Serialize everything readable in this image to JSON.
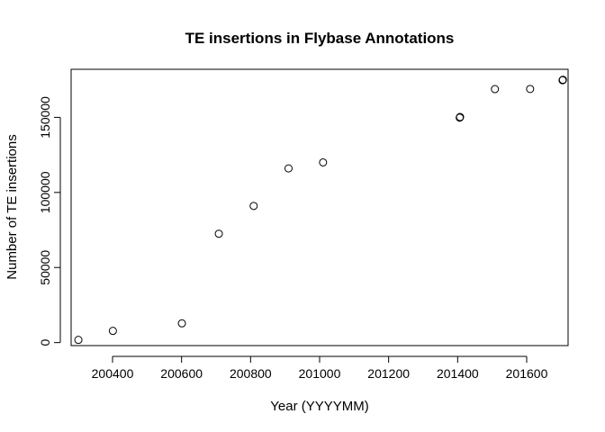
{
  "chart_data": {
    "type": "scatter",
    "title": "TE insertions in Flybase Annotations",
    "xlabel": "Year (YYYYMM)",
    "ylabel": "Number of TE insertions",
    "xlim": [
      200280,
      201720
    ],
    "ylim": [
      -2000,
      182000
    ],
    "x_ticks": [
      200400,
      200600,
      200800,
      201000,
      201200,
      201400,
      201600
    ],
    "y_ticks": [
      0,
      50000,
      100000,
      150000
    ],
    "x_tick_labels": [
      "200400",
      "200600",
      "200800",
      "201000",
      "201200",
      "201400",
      "201600"
    ],
    "y_tick_labels": [
      "0",
      "50000",
      "100000",
      "150000"
    ],
    "grid": false,
    "marker": "open-circle",
    "x": [
      200301,
      200401,
      200601,
      200708,
      200809,
      200910,
      201010,
      201406,
      201407,
      201508,
      201610,
      201704,
      201705
    ],
    "y": [
      1800,
      7800,
      12800,
      72500,
      91000,
      116000,
      120000,
      149800,
      150200,
      168800,
      168900,
      174700,
      175000
    ]
  }
}
